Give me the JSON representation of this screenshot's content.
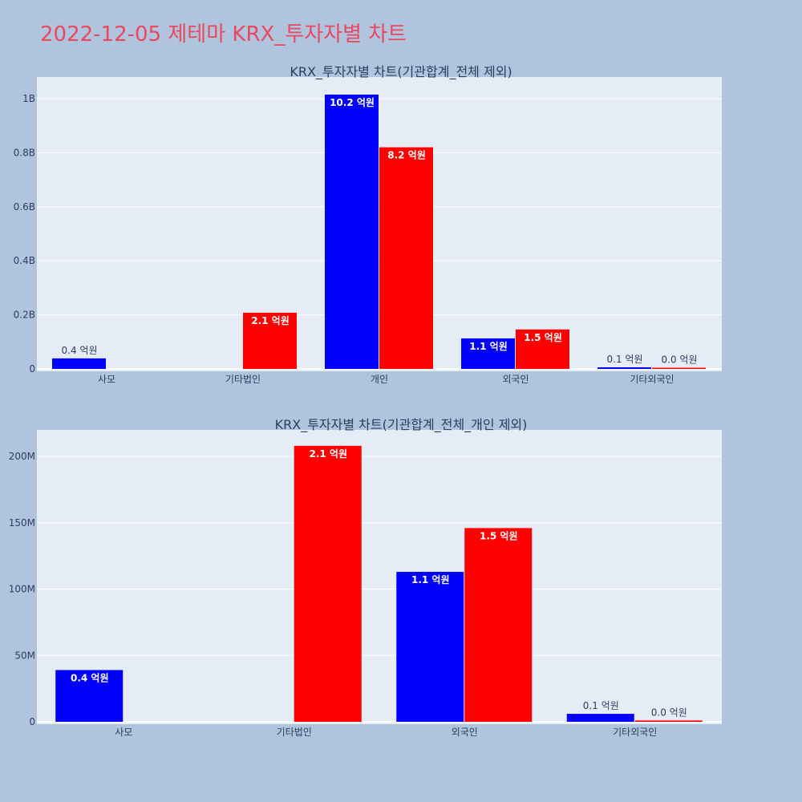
{
  "page": {
    "title": "2022-12-05 제테마 KRX_투자자별 차트",
    "title_color": "#e8495e",
    "background": "#b0c4de",
    "plot_background": "#e5ecf6"
  },
  "chart_data": [
    {
      "type": "bar",
      "title": "KRX_투자자별 차트(기관합계_전체 제외)",
      "xlabel": "",
      "ylabel": "",
      "categories": [
        "사모",
        "기타법인",
        "개인",
        "외국인",
        "기타외국인"
      ],
      "ylim": [
        0,
        1080000000
      ],
      "yticks": [
        0,
        200000000,
        400000000,
        600000000,
        800000000,
        1000000000
      ],
      "ytick_labels": [
        "0",
        "0.2B",
        "0.4B",
        "0.6B",
        "0.8B",
        "1B"
      ],
      "grid": true,
      "series": [
        {
          "color": "#0000ff",
          "values": [
            39000000,
            null,
            1015000000,
            113000000,
            6000000
          ],
          "labels": [
            "0.4 억원",
            "",
            "10.2 억원",
            "1.1 억원",
            "0.1 억원"
          ]
        },
        {
          "color": "#ff0000",
          "values": [
            null,
            208000000,
            820000000,
            146000000,
            1000000
          ],
          "labels": [
            "",
            "2.1 억원",
            "8.2 억원",
            "1.5 억원",
            "0.0 억원"
          ]
        }
      ]
    },
    {
      "type": "bar",
      "title": "KRX_투자자별 차트(기관합계_전체_개인 제외)",
      "xlabel": "",
      "ylabel": "",
      "categories": [
        "사모",
        "기타법인",
        "외국인",
        "기타외국인"
      ],
      "ylim": [
        0,
        220000000
      ],
      "yticks": [
        0,
        50000000,
        100000000,
        150000000,
        200000000
      ],
      "ytick_labels": [
        "0",
        "50M",
        "100M",
        "150M",
        "200M"
      ],
      "grid": true,
      "series": [
        {
          "color": "#0000ff",
          "values": [
            39000000,
            null,
            113000000,
            6000000
          ],
          "labels": [
            "0.4 억원",
            "",
            "1.1 억원",
            "0.1 억원"
          ]
        },
        {
          "color": "#ff0000",
          "values": [
            null,
            208000000,
            146000000,
            1000000
          ],
          "labels": [
            "",
            "2.1 억원",
            "1.5 억원",
            "0.0 억원"
          ]
        }
      ]
    }
  ]
}
